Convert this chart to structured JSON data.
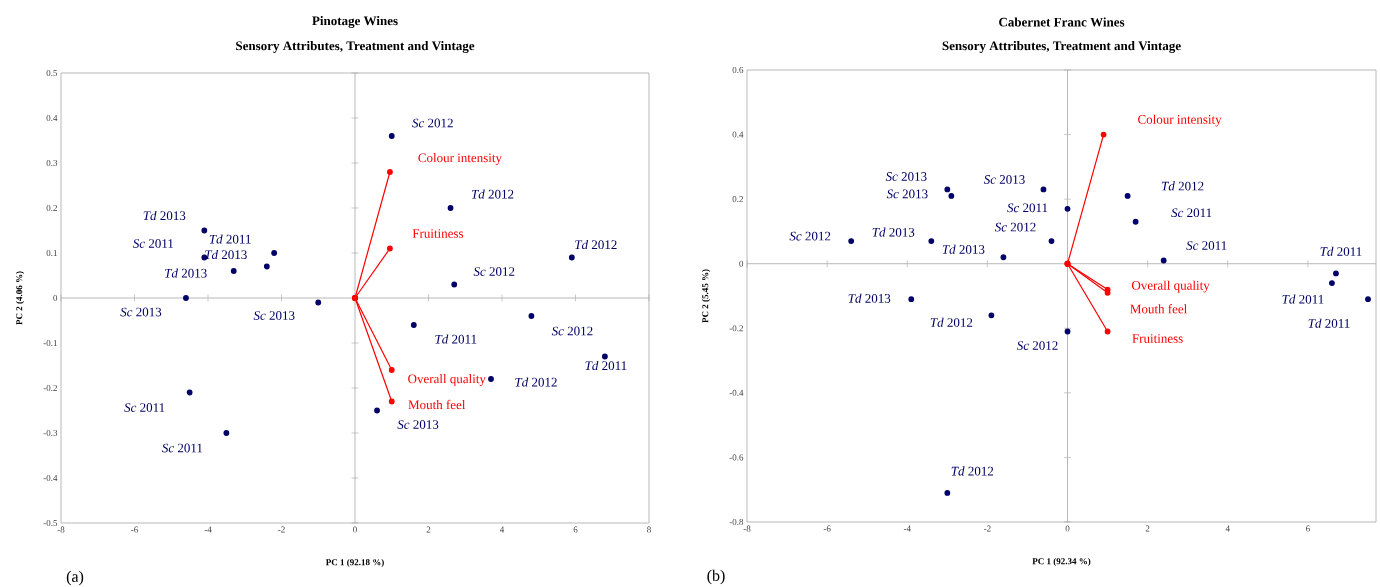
{
  "chart_data": [
    {
      "type": "scatter",
      "title": "Pinotage Wines",
      "subtitle": "Sensory Attributes, Treatment and Vintage",
      "xlabel": "PC 1 (92.18 %)",
      "ylabel": "PC 2 (4.06 %)",
      "xlim": [
        -8,
        8
      ],
      "ylim": [
        -0.5,
        0.5
      ],
      "xticks": [
        -8,
        -6,
        -4,
        -2,
        0,
        2,
        4,
        6,
        8
      ],
      "yticks": [
        -0.5,
        -0.4,
        -0.3,
        -0.2,
        -0.1,
        0,
        0.1,
        0.2,
        0.3,
        0.4,
        0.5
      ],
      "marker": "circle",
      "series": [
        {
          "color": "#000066",
          "x": [
            -4.1,
            -4.1,
            -2.2,
            -2.4,
            -3.3,
            -4.6,
            -1.0,
            -4.5,
            -3.5,
            1.0,
            2.6,
            2.7,
            5.9,
            1.6,
            4.8,
            6.8,
            3.7,
            0.6
          ],
          "values": [
            0.15,
            0.09,
            0.1,
            0.07,
            0.06,
            0.0,
            -0.01,
            -0.21,
            -0.3,
            0.36,
            0.2,
            0.03,
            0.09,
            -0.06,
            -0.04,
            -0.13,
            -0.18,
            -0.25
          ]
        },
        {
          "type": "line",
          "color": "#ff0000",
          "x": [
            0,
            0.95
          ],
          "values": [
            0,
            0.28
          ]
        },
        {
          "type": "line",
          "color": "#ff0000",
          "x": [
            0,
            0.95
          ],
          "values": [
            0,
            0.11
          ]
        },
        {
          "type": "line",
          "color": "#ff0000",
          "x": [
            0,
            1.0
          ],
          "values": [
            0,
            -0.16
          ]
        },
        {
          "type": "line",
          "color": "#ff0000",
          "x": [
            0,
            1.0
          ],
          "values": [
            0,
            -0.23
          ]
        }
      ],
      "annotations": [
        {
          "text": "*Td* 2013",
          "x": -4.1,
          "y": 0.15
        },
        {
          "text": "*Sc* 2011",
          "x": -4.1,
          "y": 0.09
        },
        {
          "text": "*Td* 2011",
          "x": -2.2,
          "y": 0.1
        },
        {
          "text": "*Td* 2013",
          "x": -2.4,
          "y": 0.07
        },
        {
          "text": "*Td* 2013",
          "x": -3.3,
          "y": 0.06
        },
        {
          "text": "*Sc* 2013",
          "x": -4.6,
          "y": 0.0
        },
        {
          "text": "*Sc* 2013",
          "x": -1.0,
          "y": -0.01
        },
        {
          "text": "*Sc* 2011",
          "x": -4.5,
          "y": -0.21
        },
        {
          "text": "*Sc* 2011",
          "x": -3.5,
          "y": -0.3
        },
        {
          "text": "*Sc* 2012",
          "x": 1.0,
          "y": 0.36
        },
        {
          "text": "*Td* 2012",
          "x": 2.6,
          "y": 0.2
        },
        {
          "text": "*Sc* 2012",
          "x": 2.7,
          "y": 0.03
        },
        {
          "text": "*Td* 2012",
          "x": 5.9,
          "y": 0.09
        },
        {
          "text": "*Td* 2011",
          "x": 1.6,
          "y": -0.06
        },
        {
          "text": "*Sc* 2012",
          "x": 4.8,
          "y": -0.04
        },
        {
          "text": "*Td* 2011",
          "x": 6.8,
          "y": -0.13
        },
        {
          "text": "*Td* 2012",
          "x": 3.7,
          "y": -0.18
        },
        {
          "text": "*Sc* 2013",
          "x": 0.6,
          "y": -0.25
        },
        {
          "text": "Colour intensity",
          "x": 0.95,
          "y": 0.28
        },
        {
          "text": "Fruitiness",
          "x": 0.95,
          "y": 0.11
        },
        {
          "text": "Overall quality",
          "x": 1.0,
          "y": -0.16
        },
        {
          "text": "Mouth feel",
          "x": 1.0,
          "y": -0.23
        },
        "(a)"
      ]
    },
    {
      "type": "scatter",
      "title": "Cabernet Franc Wines",
      "subtitle": "Sensory Attributes, Treatment and Vintage",
      "xlabel": "PC 1 (92.34 %)",
      "ylabel": "PC 2 (5.45 %)",
      "xlim": [
        -8,
        7.7
      ],
      "ylim": [
        -0.8,
        0.6
      ],
      "xticks": [
        -8,
        -6,
        -4,
        -2,
        0,
        2,
        4,
        6
      ],
      "yticks": [
        -0.8,
        -0.6,
        -0.4,
        -0.2,
        0,
        0.2,
        0.4,
        0.6
      ],
      "marker": "circle",
      "series": [
        {
          "color": "#000066",
          "x": [
            -3.0,
            -2.9,
            -0.6,
            0.0,
            -0.4,
            -5.4,
            -3.4,
            -1.6,
            -3.9,
            -1.9,
            0.0,
            -3.0,
            1.5,
            1.7,
            2.4,
            6.7,
            6.6,
            7.5
          ],
          "values": [
            0.23,
            0.21,
            0.23,
            0.17,
            0.07,
            0.07,
            0.07,
            0.02,
            -0.11,
            -0.16,
            -0.21,
            -0.71,
            0.21,
            0.13,
            0.01,
            -0.03,
            -0.06,
            -0.11
          ]
        },
        {
          "type": "line",
          "color": "#ff0000",
          "x": [
            0,
            0.9
          ],
          "values": [
            0,
            0.4
          ]
        },
        {
          "type": "line",
          "color": "#ff0000",
          "x": [
            0,
            1.0
          ],
          "values": [
            0,
            -0.08
          ]
        },
        {
          "type": "line",
          "color": "#ff0000",
          "x": [
            0,
            1.0
          ],
          "values": [
            0,
            -0.09
          ]
        },
        {
          "type": "line",
          "color": "#ff0000",
          "x": [
            0,
            1.0
          ],
          "values": [
            0,
            -0.21
          ]
        }
      ],
      "annotations": [
        {
          "text": "*Sc* 2013",
          "x": -3.0,
          "y": 0.23
        },
        {
          "text": "*Sc* 2013",
          "x": -2.9,
          "y": 0.21
        },
        {
          "text": "*Sc* 2013",
          "x": -0.6,
          "y": 0.23
        },
        {
          "text": "*Sc* 2011",
          "x": 0.0,
          "y": 0.17
        },
        {
          "text": "*Sc* 2012",
          "x": -0.4,
          "y": 0.07
        },
        {
          "text": "*Sc* 2012",
          "x": -5.4,
          "y": 0.07
        },
        {
          "text": "*Td* 2013",
          "x": -3.4,
          "y": 0.07
        },
        {
          "text": "*Td* 2013",
          "x": -1.6,
          "y": 0.02
        },
        {
          "text": "*Td* 2013",
          "x": -3.9,
          "y": -0.11
        },
        {
          "text": "*Td* 2012",
          "x": -1.9,
          "y": -0.16
        },
        {
          "text": "*Sc* 2012",
          "x": 0.0,
          "y": -0.21
        },
        {
          "text": "*Td* 2012",
          "x": -3.0,
          "y": -0.71
        },
        {
          "text": "*Td* 2012",
          "x": 1.5,
          "y": 0.21
        },
        {
          "text": "*Sc* 2011",
          "x": 1.7,
          "y": 0.13
        },
        {
          "text": "*Sc* 2011",
          "x": 2.4,
          "y": 0.01
        },
        {
          "text": "*Td* 2011",
          "x": 6.7,
          "y": -0.03
        },
        {
          "text": "*Td* 2011",
          "x": 6.6,
          "y": -0.06
        },
        {
          "text": "*Td* 2011",
          "x": 7.5,
          "y": -0.11
        },
        {
          "text": "Colour intensity",
          "x": 0.9,
          "y": 0.4
        },
        {
          "text": "Overall quality",
          "x": 1.0,
          "y": -0.08
        },
        {
          "text": "Mouth feel",
          "x": 1.0,
          "y": -0.09
        },
        {
          "text": "Fruitiness",
          "x": 1.0,
          "y": -0.21
        },
        "(b)"
      ]
    }
  ]
}
